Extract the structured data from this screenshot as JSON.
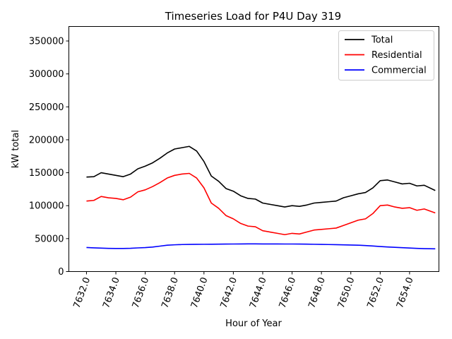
{
  "chart_data": {
    "type": "line",
    "title": "Timeseries Load for P4U   Day 319",
    "xlabel": "Hour of Year",
    "ylabel": "kW total",
    "xlim": [
      7630.8,
      7656.0
    ],
    "ylim": [
      0,
      372000
    ],
    "x_ticks": [
      7632.0,
      7634.0,
      7636.0,
      7638.0,
      7640.0,
      7642.0,
      7644.0,
      7646.0,
      7648.0,
      7650.0,
      7652.0,
      7654.0
    ],
    "x_tick_labels": [
      "7632.0",
      "7634.0",
      "7636.0",
      "7638.0",
      "7640.0",
      "7642.0",
      "7644.0",
      "7646.0",
      "7648.0",
      "7650.0",
      "7652.0",
      "7654.0"
    ],
    "y_ticks": [
      0,
      50000,
      100000,
      150000,
      200000,
      250000,
      300000,
      350000
    ],
    "y_tick_labels": [
      "0",
      "50000",
      "100000",
      "150000",
      "200000",
      "250000",
      "300000",
      "350000"
    ],
    "grid": false,
    "legend_position": "top-right",
    "x": [
      7632.0,
      7632.5,
      7633.0,
      7633.5,
      7634.0,
      7634.5,
      7635.0,
      7635.5,
      7636.0,
      7636.5,
      7637.0,
      7637.5,
      7638.0,
      7638.5,
      7639.0,
      7639.5,
      7640.0,
      7640.5,
      7641.0,
      7641.5,
      7642.0,
      7642.5,
      7643.0,
      7643.5,
      7644.0,
      7644.5,
      7645.0,
      7645.5,
      7646.0,
      7646.5,
      7647.0,
      7647.5,
      7648.0,
      7648.5,
      7649.0,
      7649.5,
      7650.0,
      7650.5,
      7651.0,
      7651.5,
      7652.0,
      7652.5,
      7653.0,
      7653.5,
      7654.0,
      7654.5,
      7655.0,
      7655.75
    ],
    "series": [
      {
        "name": "Total",
        "color": "#000000",
        "values": [
          143500,
          144000,
          150000,
          148000,
          146000,
          144000,
          148000,
          156000,
          160000,
          165000,
          172000,
          180000,
          186000,
          188000,
          190000,
          183000,
          167000,
          145000,
          137000,
          126000,
          122000,
          115000,
          111000,
          110000,
          104000,
          102000,
          100000,
          98000,
          100000,
          99000,
          101000,
          104000,
          105000,
          106000,
          107000,
          112000,
          115000,
          118000,
          120000,
          127000,
          138000,
          139000,
          136000,
          133000,
          134000,
          130000,
          131000,
          123000
        ]
      },
      {
        "name": "Residential",
        "color": "#ff0000",
        "values": [
          107000,
          108000,
          114000,
          112000,
          111000,
          109000,
          113000,
          121000,
          124000,
          129000,
          135000,
          142000,
          146000,
          148000,
          149000,
          142000,
          127000,
          104000,
          96000,
          85000,
          80000,
          73000,
          69000,
          68000,
          62000,
          60000,
          58000,
          56000,
          58000,
          57000,
          60000,
          63000,
          64000,
          65000,
          66000,
          70000,
          74000,
          78000,
          80000,
          88000,
          100000,
          101000,
          98000,
          96000,
          97000,
          93000,
          95000,
          89000
        ]
      },
      {
        "name": "Commercial",
        "color": "#0000ff",
        "values": [
          36500,
          36000,
          35600,
          35200,
          35000,
          35000,
          35300,
          35900,
          36400,
          37200,
          38600,
          40000,
          40600,
          41000,
          41200,
          41300,
          41400,
          41500,
          41600,
          41700,
          41800,
          41900,
          42000,
          42000,
          41900,
          41900,
          41900,
          41800,
          41800,
          41700,
          41600,
          41400,
          41200,
          41000,
          40800,
          40500,
          40300,
          40000,
          39500,
          38800,
          38000,
          37300,
          36800,
          36200,
          35700,
          35200,
          34800,
          34500
        ]
      }
    ]
  }
}
